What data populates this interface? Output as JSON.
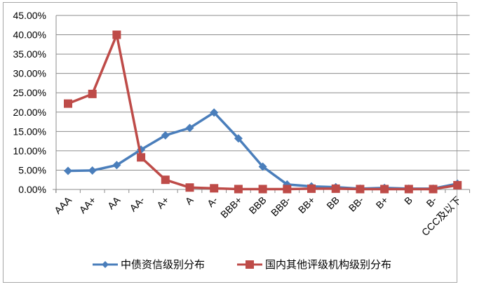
{
  "chart_data": {
    "type": "line",
    "title": "",
    "xlabel": "",
    "ylabel": "",
    "ylim": [
      0,
      45
    ],
    "y_ticks": [
      "0.00%",
      "5.00%",
      "10.00%",
      "15.00%",
      "20.00%",
      "25.00%",
      "30.00%",
      "35.00%",
      "40.00%",
      "45.00%"
    ],
    "grid": "horizontal",
    "legend_position": "bottom",
    "categories": [
      "AAA",
      "AA+",
      "AA",
      "AA-",
      "A+",
      "A",
      "A-",
      "BBB+",
      "BBB",
      "BBB-",
      "BB+",
      "BB",
      "BB-",
      "B+",
      "B",
      "B-",
      "CCC及以下"
    ],
    "series": [
      {
        "name": "中债资信级别分布",
        "color": "#4a7ebb",
        "marker": "diamond",
        "values": [
          4.8,
          4.9,
          6.3,
          10.3,
          14.0,
          15.9,
          19.9,
          13.2,
          5.9,
          1.3,
          0.8,
          0.6,
          0.2,
          0.4,
          0.2,
          0.2,
          1.5
        ]
      },
      {
        "name": "国内其他评级机构级别分布",
        "color": "#be4b48",
        "marker": "square",
        "values": [
          22.2,
          24.7,
          40.0,
          8.3,
          2.5,
          0.5,
          0.3,
          0.1,
          0.1,
          0.1,
          0.2,
          0.2,
          0.1,
          0.1,
          0.1,
          0.1,
          1.1
        ]
      }
    ]
  },
  "legend": {
    "series_0": "中债资信级别分布",
    "series_1": "国内其他评级机构级别分布"
  }
}
